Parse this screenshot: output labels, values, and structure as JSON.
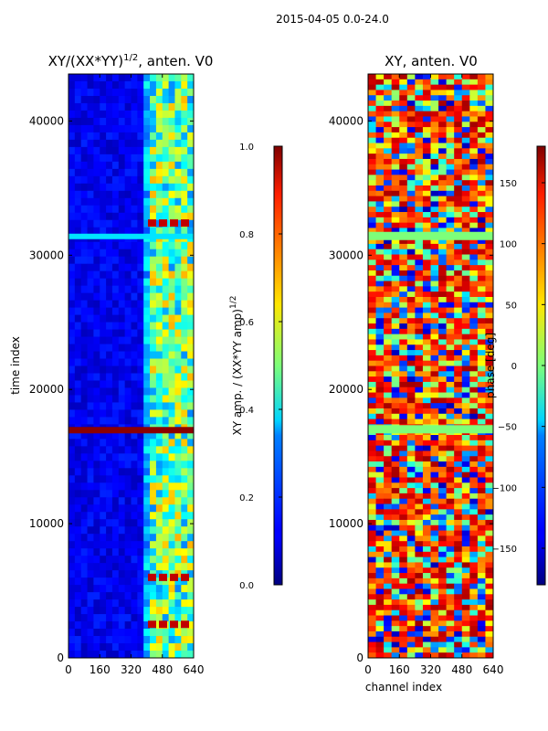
{
  "suptitle": "2015-04-05 0.0-24.0",
  "chart_data": [
    {
      "type": "heatmap",
      "title_main": "XY/(XX*YY)",
      "title_sup": "1/2",
      "title_tail": ", anten. V0",
      "xlabel": "",
      "ylabel": "time index",
      "xlim": [
        0,
        640
      ],
      "ylim": [
        0,
        43500
      ],
      "xticks": [
        0,
        160,
        320,
        480,
        640
      ],
      "xtick_labels": [
        "0",
        "160",
        "320",
        "480",
        "640"
      ],
      "yticks": [
        0,
        10000,
        20000,
        30000,
        40000
      ],
      "ytick_labels": [
        "0",
        "10000",
        "20000",
        "30000",
        "40000"
      ],
      "colorbar": {
        "label_main": "XY amp. / (XX*YY amp)",
        "label_sup": "1/2",
        "range": [
          0.0,
          1.0
        ],
        "ticks": [
          0.0,
          0.2,
          0.4,
          0.6,
          0.8,
          1.0
        ],
        "tick_labels": [
          "0.0",
          "0.2",
          "0.4",
          "0.6",
          "0.8",
          "1.0"
        ],
        "colormap": "jet"
      }
    },
    {
      "type": "heatmap",
      "title": "XY, anten. V0",
      "xlabel": "channel index",
      "ylabel": "",
      "xlim": [
        0,
        640
      ],
      "ylim": [
        0,
        43500
      ],
      "xticks": [
        0,
        160,
        320,
        480,
        640
      ],
      "xtick_labels": [
        "0",
        "160",
        "320",
        "480",
        "640"
      ],
      "yticks": [
        0,
        10000,
        20000,
        30000,
        40000
      ],
      "ytick_labels": [
        "0",
        "10000",
        "20000",
        "30000",
        "40000"
      ],
      "colorbar": {
        "label": "phase [deg]",
        "range": [
          -180,
          180
        ],
        "ticks": [
          -150,
          -100,
          -50,
          0,
          50,
          100,
          150
        ],
        "tick_labels": [
          "−150",
          "−100",
          "−50",
          "0",
          "50",
          "100",
          "150"
        ],
        "colormap": "jet"
      }
    }
  ],
  "colors": {
    "axis": "#000000",
    "background": "#ffffff",
    "jet_low": "#00007f",
    "jet_high": "#7f0000"
  }
}
